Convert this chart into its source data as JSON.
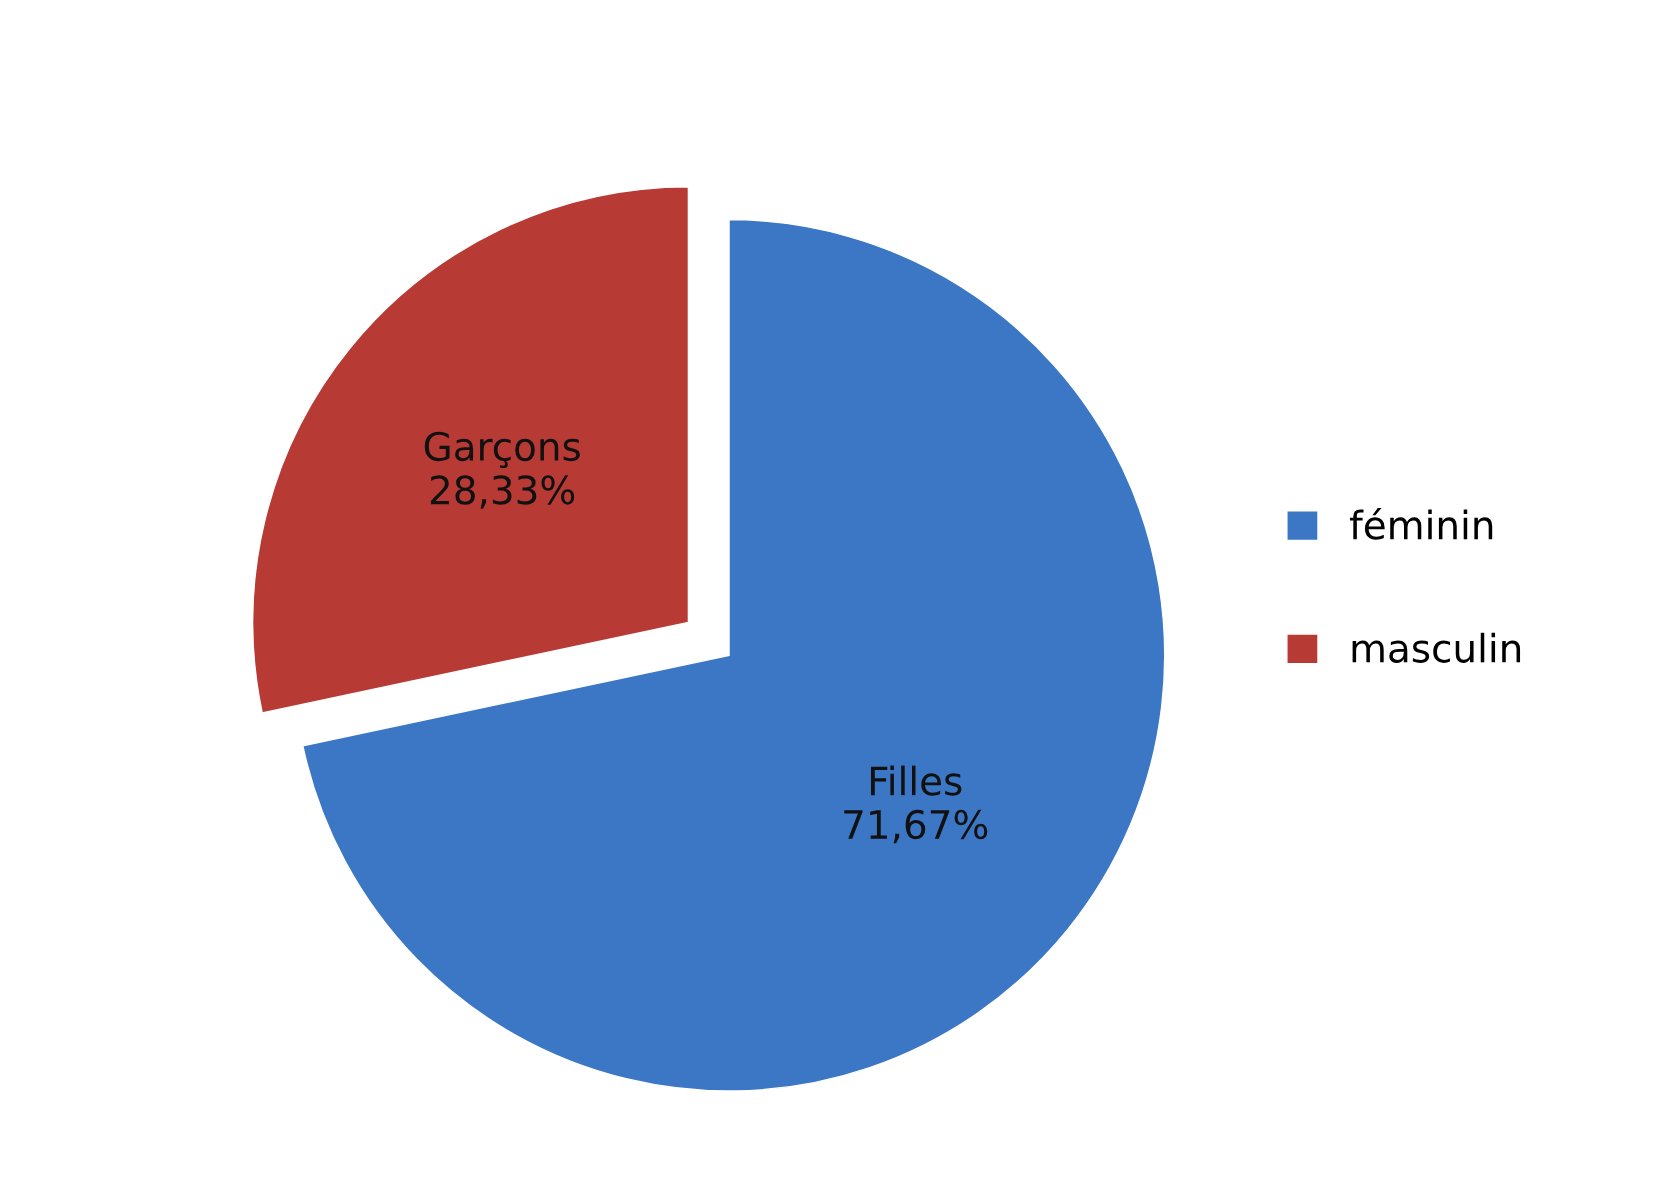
{
  "chart_data": {
    "type": "pie",
    "categories": [
      "féminin",
      "masculin"
    ],
    "values": [
      71.67,
      28.33
    ],
    "colors": [
      "#3b77c4",
      "#b83a34"
    ],
    "value_labels": [
      "Filles\n71,67%",
      "Garçons\n28,33%"
    ],
    "legend": "right"
  }
}
